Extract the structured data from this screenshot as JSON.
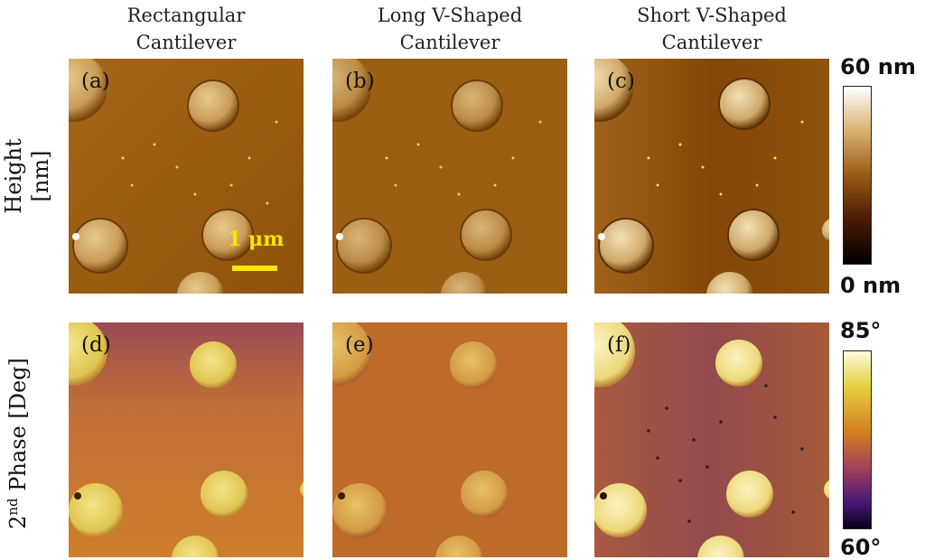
{
  "columns": [
    {
      "title_line1": "Rectangular",
      "title_line2": "Cantilever"
    },
    {
      "title_line1": "Long V-Shaped",
      "title_line2": "Cantilever"
    },
    {
      "title_line1": "Short V-Shaped",
      "title_line2": "Cantilever"
    }
  ],
  "rows": {
    "height": {
      "label_line1": "Height",
      "label_line2": "[nm]"
    },
    "phase": {
      "label_sup": "nd",
      "label_pre": "2",
      "label_post": " Phase [Deg]"
    }
  },
  "panels": [
    "(a)",
    "(b)",
    "(c)",
    "(d)",
    "(e)",
    "(f)"
  ],
  "scalebar": {
    "label": "1 μm",
    "color": "#ffe400"
  },
  "colorbars": {
    "height": {
      "max_label": "60 nm",
      "min_label": "0 nm"
    },
    "phase": {
      "max_label": "85°",
      "min_label": "60°"
    }
  },
  "colors": {
    "height_bg_a": "#9a5c10",
    "height_bg_b": "#9c5e12",
    "height_bg_c": "#8a4a0a",
    "phase_bg_d": "#c9782e",
    "phase_bg_e": "#bd6a2a",
    "phase_bg_f": "#9a4f48",
    "particle_light": "#e8cf73"
  }
}
